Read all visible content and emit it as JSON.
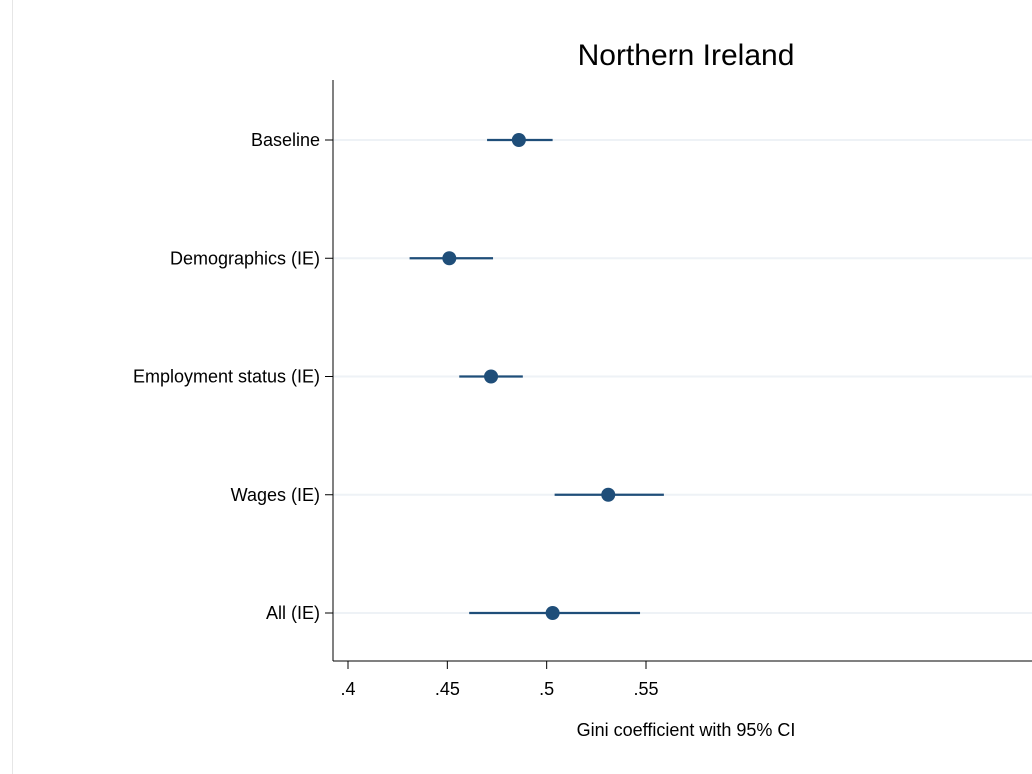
{
  "chart_data": {
    "type": "scatter",
    "title": "Northern Ireland",
    "xlabel": "Gini coefficient with 95% CI",
    "ylabel": "",
    "xlim": [
      0.397,
      0.56
    ],
    "x_ticks": [
      {
        "value": 0.4,
        "label": ".4"
      },
      {
        "value": 0.45,
        "label": ".45"
      },
      {
        "value": 0.5,
        "label": ".5"
      },
      {
        "value": 0.55,
        "label": ".55"
      }
    ],
    "categories": [
      "Baseline",
      "Demographics (IE)",
      "Employment status (IE)",
      "Wages (IE)",
      "All (IE)"
    ],
    "series": [
      {
        "estimates": [
          0.486,
          0.451,
          0.472,
          0.531,
          0.503
        ],
        "ci_lower": [
          0.47,
          0.431,
          0.456,
          0.504,
          0.461
        ],
        "ci_upper": [
          0.503,
          0.473,
          0.488,
          0.559,
          0.547
        ]
      }
    ],
    "grid": true,
    "colors": {
      "marker": "#1f4e79",
      "title": "#1f3864",
      "grid": "#eef2f6"
    }
  }
}
